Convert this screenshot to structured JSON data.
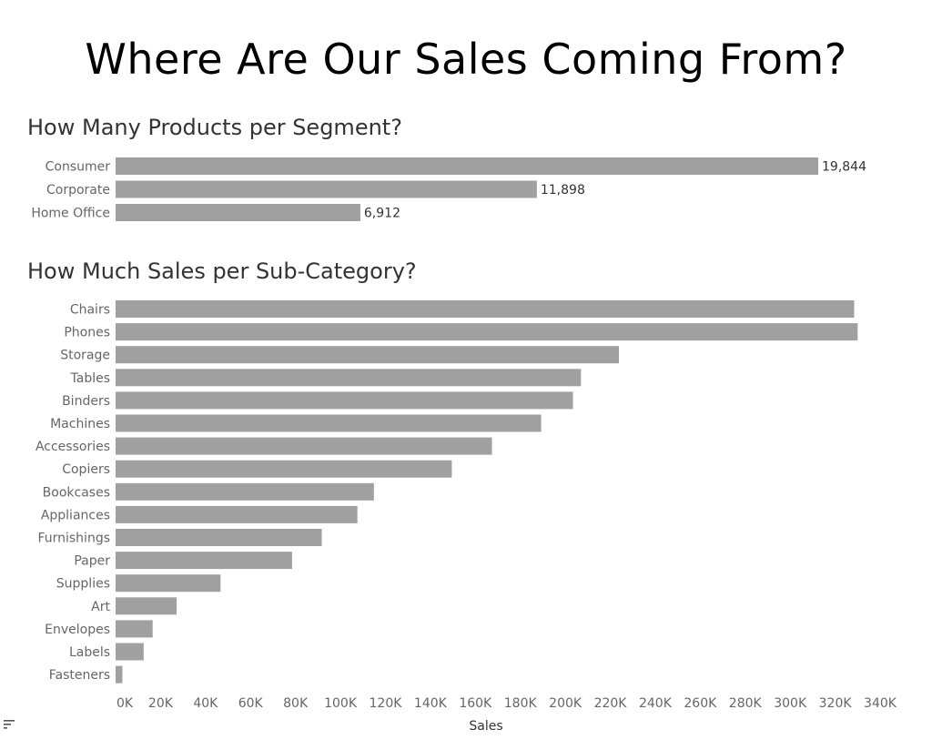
{
  "title": "Where Are Our Sales Coming From?",
  "chart_data": [
    {
      "type": "bar",
      "orientation": "horizontal",
      "title": "How Many Products per Segment?",
      "categories": [
        "Consumer",
        "Corporate",
        "Home Office"
      ],
      "values": [
        19844,
        11898,
        6912
      ],
      "data_labels": [
        "19,844",
        "11,898",
        "6,912"
      ],
      "xlim": [
        0,
        19844
      ],
      "bar_color": "#a0a0a0",
      "grid": false
    },
    {
      "type": "bar",
      "orientation": "horizontal",
      "title": "How Much Sales per Sub-Category?",
      "categories": [
        "Chairs",
        "Phones",
        "Storage",
        "Tables",
        "Binders",
        "Machines",
        "Accessories",
        "Copiers",
        "Bookcases",
        "Appliances",
        "Furnishings",
        "Paper",
        "Supplies",
        "Art",
        "Envelopes",
        "Labels",
        "Fasteners"
      ],
      "values": [
        328449,
        330007,
        223844,
        206966,
        203413,
        189239,
        167380,
        149528,
        114880,
        107532,
        91705,
        78479,
        46674,
        27119,
        16476,
        12486,
        3024
      ],
      "xlabel": "Sales",
      "xlim": [
        0,
        340000
      ],
      "xticks": [
        0,
        20000,
        40000,
        60000,
        80000,
        100000,
        120000,
        140000,
        160000,
        180000,
        200000,
        220000,
        240000,
        260000,
        280000,
        300000,
        320000,
        340000
      ],
      "xtick_labels": [
        "0K",
        "20K",
        "40K",
        "60K",
        "80K",
        "100K",
        "120K",
        "140K",
        "160K",
        "180K",
        "200K",
        "220K",
        "240K",
        "260K",
        "280K",
        "300K",
        "320K",
        "340K"
      ],
      "bar_color": "#a0a0a0",
      "grid": false,
      "sort_icon": "sort-descending-icon"
    }
  ]
}
